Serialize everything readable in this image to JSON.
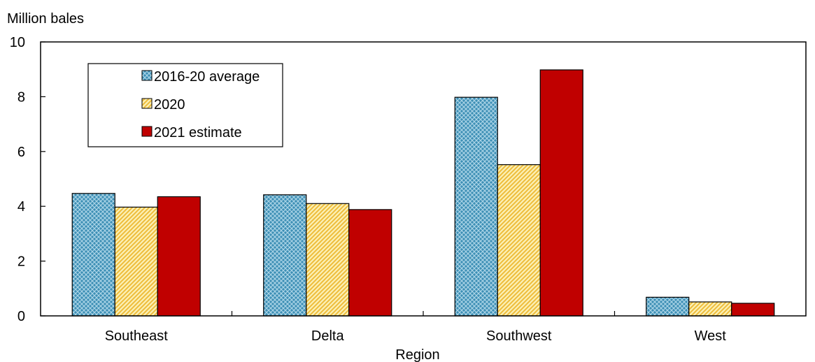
{
  "chart_data": {
    "type": "bar",
    "ylabel": "Million bales",
    "xlabel": "Region",
    "ylim": [
      0,
      10
    ],
    "yticks": [
      0,
      2,
      4,
      6,
      8,
      10
    ],
    "grid": false,
    "legend_position": "top-left",
    "categories": [
      "Southeast",
      "Delta",
      "Southwest",
      "West"
    ],
    "series": [
      {
        "name": "2016-20 average",
        "values": [
          4.47,
          4.42,
          7.98,
          0.68
        ],
        "color": "#2e7fa6",
        "pattern": "crosshatch"
      },
      {
        "name": "2020",
        "values": [
          3.97,
          4.1,
          5.52,
          0.51
        ],
        "color": "#f6df7a",
        "pattern": "diagonal"
      },
      {
        "name": "2021 estimate",
        "values": [
          4.35,
          3.88,
          8.98,
          0.46
        ],
        "color": "#c00000",
        "pattern": "solid"
      }
    ]
  }
}
